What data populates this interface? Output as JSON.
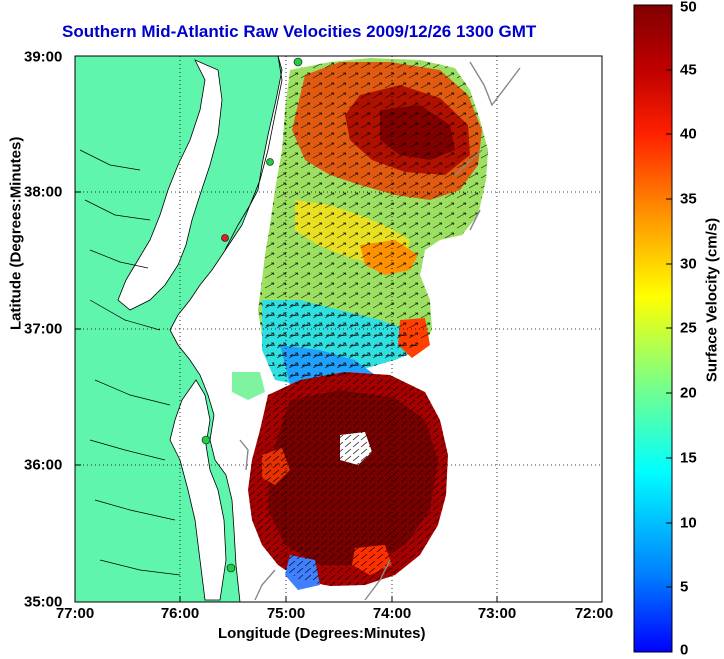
{
  "title": "Southern Mid-Atlantic Raw Velocities 2009/12/26 1300 GMT",
  "xaxis": {
    "label": "Longitude (Degrees:Minutes)",
    "ticks": [
      "77:00",
      "76:00",
      "75:00",
      "74:00",
      "73:00",
      "72:00"
    ]
  },
  "yaxis": {
    "label": "Latitude (Degrees:Minutes)",
    "ticks": [
      "39:00",
      "38:00",
      "37:00",
      "36:00",
      "35:00"
    ]
  },
  "colorbar": {
    "label": "Surface Velocity (cm/s)",
    "ticks": [
      "50",
      "45",
      "40",
      "35",
      "30",
      "25",
      "20",
      "15",
      "10",
      "5",
      "0"
    ],
    "range": [
      0,
      50
    ],
    "colormap": "jet"
  },
  "colors": {
    "title": "#0000cc",
    "land": "#5ff5ad",
    "ocean": "#ffffff",
    "coastline": "#000000",
    "station_marker": "#22cc44",
    "station_marker_alt": "#dd2222"
  },
  "map": {
    "lon_range": [
      "77:00",
      "72:00"
    ],
    "lat_range": [
      "35:00",
      "39:00"
    ],
    "grid": "dotted"
  }
}
